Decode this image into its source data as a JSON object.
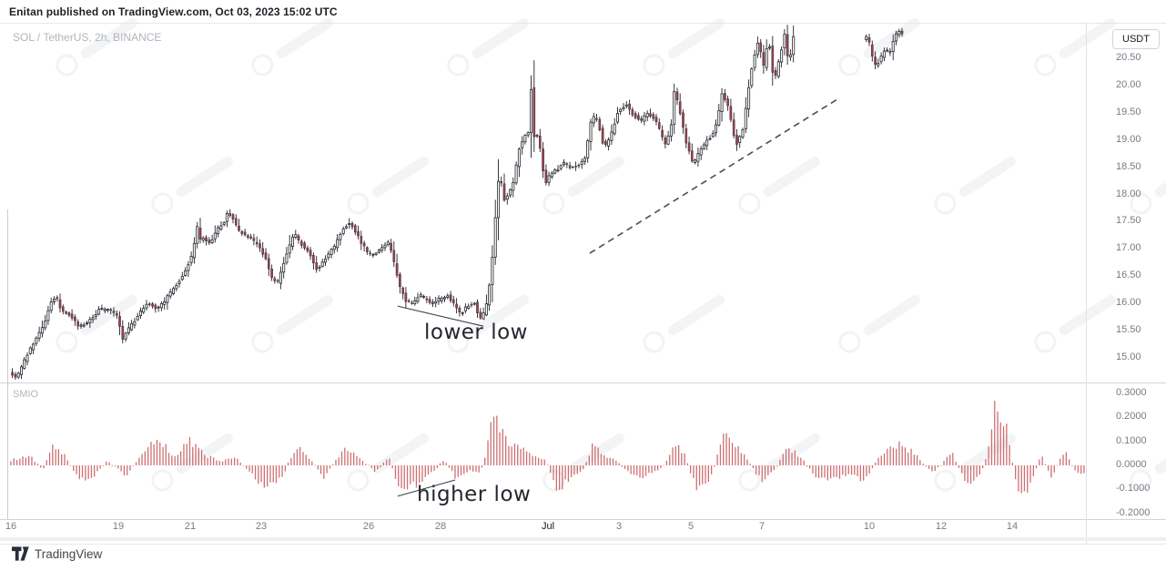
{
  "header": {
    "published_line": "Enitan published on TradingView.com, Oct 03, 2023 15:02 UTC",
    "symbol_line": "SOL / TetherUS, 2h, BINANCE",
    "currency_button": "USDT"
  },
  "footer": {
    "brand": "TradingView"
  },
  "annotations": {
    "lower_low": "lower low",
    "higher_low": "higher low"
  },
  "colors": {
    "candle_up_fill": "#ffffff",
    "candle_down_fill": "#9d4046",
    "candle_outline": "#23262f",
    "wick": "#1e222b",
    "smio_bar": "#c65b60",
    "trendline": "#4a4e57",
    "pointer_line": "#3a3e47",
    "axis_text": "#787b86",
    "divider": "#d1d4dc"
  },
  "chart_data": {
    "type": "candlestick",
    "title": "SOL / TetherUS, 2h, BINANCE",
    "encoding": "keyframes are [day_offset_from_Jun16, value]; candles are 2h (12 per day)",
    "time_axis": {
      "labels": [
        [
          "16",
          0
        ],
        [
          "19",
          3
        ],
        [
          "21",
          5
        ],
        [
          "23",
          7
        ],
        [
          "26",
          10
        ],
        [
          "28",
          12
        ],
        [
          "Jul",
          15
        ],
        [
          "3",
          17
        ],
        [
          "5",
          19
        ],
        [
          "7",
          21
        ],
        [
          "10",
          24
        ],
        [
          "12",
          26
        ],
        [
          "14",
          28
        ]
      ],
      "major_label": "Jul"
    },
    "price_pane": {
      "y_labels": [
        "20.50",
        "20.00",
        "19.50",
        "19.00",
        "18.50",
        "18.00",
        "17.50",
        "17.00",
        "16.50",
        "16.00",
        "15.50",
        "15.00"
      ],
      "visible_price_range": [
        14.57,
        21.15
      ],
      "candle_segments_days": [
        [
          0,
          21.92
        ],
        [
          23.87,
          24.94
        ]
      ],
      "price_keyframes": [
        [
          0,
          14.75
        ],
        [
          0.2,
          14.62
        ],
        [
          0.45,
          15.0
        ],
        [
          0.7,
          15.3
        ],
        [
          0.95,
          15.6
        ],
        [
          1.15,
          16.0
        ],
        [
          1.3,
          16.15
        ],
        [
          1.45,
          15.85
        ],
        [
          1.7,
          15.78
        ],
        [
          1.95,
          15.58
        ],
        [
          2.2,
          15.65
        ],
        [
          2.5,
          15.88
        ],
        [
          2.8,
          15.9
        ],
        [
          3.0,
          15.78
        ],
        [
          3.17,
          15.35
        ],
        [
          3.35,
          15.55
        ],
        [
          3.6,
          15.78
        ],
        [
          3.85,
          16.02
        ],
        [
          4.1,
          15.9
        ],
        [
          4.35,
          16.05
        ],
        [
          4.6,
          16.3
        ],
        [
          4.85,
          16.5
        ],
        [
          5.05,
          16.8
        ],
        [
          5.15,
          16.95
        ],
        [
          5.22,
          17.55
        ],
        [
          5.3,
          17.15
        ],
        [
          5.45,
          17.2
        ],
        [
          5.6,
          17.1
        ],
        [
          5.8,
          17.35
        ],
        [
          6.0,
          17.5
        ],
        [
          6.1,
          17.7
        ],
        [
          6.22,
          17.58
        ],
        [
          6.38,
          17.35
        ],
        [
          6.55,
          17.28
        ],
        [
          6.75,
          17.2
        ],
        [
          6.95,
          17.05
        ],
        [
          7.15,
          16.85
        ],
        [
          7.35,
          16.45
        ],
        [
          7.5,
          16.38
        ],
        [
          7.65,
          16.7
        ],
        [
          7.8,
          17.0
        ],
        [
          7.96,
          17.28
        ],
        [
          8.15,
          17.1
        ],
        [
          8.4,
          16.9
        ],
        [
          8.6,
          16.6
        ],
        [
          8.85,
          16.85
        ],
        [
          9.1,
          17.05
        ],
        [
          9.3,
          17.35
        ],
        [
          9.5,
          17.48
        ],
        [
          9.65,
          17.35
        ],
        [
          9.85,
          17.1
        ],
        [
          10.05,
          16.9
        ],
        [
          10.3,
          16.95
        ],
        [
          10.5,
          17.08
        ],
        [
          10.62,
          17.12
        ],
        [
          10.78,
          16.65
        ],
        [
          10.92,
          16.3
        ],
        [
          11.08,
          16.05
        ],
        [
          11.25,
          16.0
        ],
        [
          11.45,
          16.15
        ],
        [
          11.65,
          16.08
        ],
        [
          11.85,
          15.98
        ],
        [
          12.05,
          16.1
        ],
        [
          12.25,
          16.15
        ],
        [
          12.45,
          15.95
        ],
        [
          12.62,
          15.8
        ],
        [
          12.8,
          15.95
        ],
        [
          13.0,
          16.0
        ],
        [
          13.15,
          15.72
        ],
        [
          13.3,
          15.85
        ],
        [
          13.45,
          16.5
        ],
        [
          13.55,
          17.2
        ],
        [
          13.64,
          18.2
        ],
        [
          13.72,
          18.35
        ],
        [
          13.82,
          17.9
        ],
        [
          13.95,
          18.0
        ],
        [
          14.1,
          18.25
        ],
        [
          14.25,
          18.85
        ],
        [
          14.4,
          19.1
        ],
        [
          14.52,
          19.15
        ],
        [
          14.58,
          20.0
        ],
        [
          14.64,
          19.05
        ],
        [
          14.78,
          19.1
        ],
        [
          14.9,
          18.5
        ],
        [
          14.98,
          18.2
        ],
        [
          15.12,
          18.4
        ],
        [
          15.3,
          18.45
        ],
        [
          15.5,
          18.58
        ],
        [
          15.7,
          18.5
        ],
        [
          15.9,
          18.55
        ],
        [
          16.1,
          18.7
        ],
        [
          16.28,
          19.45
        ],
        [
          16.45,
          19.35
        ],
        [
          16.62,
          18.85
        ],
        [
          16.8,
          19.05
        ],
        [
          17.0,
          19.5
        ],
        [
          17.25,
          19.65
        ],
        [
          17.45,
          19.45
        ],
        [
          17.65,
          19.35
        ],
        [
          17.85,
          19.5
        ],
        [
          18.07,
          19.35
        ],
        [
          18.35,
          18.9
        ],
        [
          18.5,
          19.3
        ],
        [
          18.57,
          19.9
        ],
        [
          18.7,
          19.65
        ],
        [
          18.9,
          19.0
        ],
        [
          19.11,
          18.55
        ],
        [
          19.3,
          18.8
        ],
        [
          19.5,
          19.0
        ],
        [
          19.66,
          19.1
        ],
        [
          19.8,
          19.4
        ],
        [
          19.92,
          19.85
        ],
        [
          20.1,
          19.6
        ],
        [
          20.31,
          18.9
        ],
        [
          20.51,
          19.2
        ],
        [
          20.71,
          20.2
        ],
        [
          20.94,
          20.85
        ],
        [
          21.07,
          20.3
        ],
        [
          21.22,
          20.9
        ],
        [
          21.37,
          20.05
        ],
        [
          21.53,
          20.5
        ],
        [
          21.68,
          21.0
        ],
        [
          21.74,
          20.8
        ],
        [
          21.78,
          19.7
        ],
        [
          21.84,
          20.7
        ],
        [
          21.92,
          20.9
        ],
        [
          23.87,
          20.85
        ],
        [
          24.0,
          20.9
        ],
        [
          24.1,
          20.55
        ],
        [
          24.22,
          20.35
        ],
        [
          24.35,
          20.5
        ],
        [
          24.5,
          20.68
        ],
        [
          24.6,
          20.55
        ],
        [
          24.72,
          20.85
        ],
        [
          24.85,
          21.0
        ],
        [
          24.94,
          20.95
        ]
      ],
      "dashed_trendline": {
        "from": [
          16.18,
          16.92
        ],
        "to": [
          23.18,
          19.78
        ]
      },
      "lower_low_pointer": {
        "from": [
          10.81,
          15.95
        ],
        "to": [
          13.21,
          15.58
        ]
      }
    },
    "smio_pane": {
      "name": "SMIO",
      "y_labels": [
        "0.3000",
        "0.2000",
        "0.1000",
        "0.0000",
        "-0.1000",
        "-0.2000"
      ],
      "bars_range_days": [
        0,
        30.9
      ],
      "value_keyframes": [
        [
          0,
          0.02
        ],
        [
          0.5,
          0.045
        ],
        [
          0.9,
          -0.02
        ],
        [
          1.19,
          0.09
        ],
        [
          1.55,
          0.03
        ],
        [
          1.9,
          -0.06
        ],
        [
          2.3,
          -0.045
        ],
        [
          2.7,
          0.02
        ],
        [
          3.0,
          -0.015
        ],
        [
          3.2,
          -0.05
        ],
        [
          3.6,
          0.03
        ],
        [
          4.1,
          0.125
        ],
        [
          4.55,
          0.04
        ],
        [
          5.01,
          0.1
        ],
        [
          5.45,
          0.04
        ],
        [
          5.9,
          0.02
        ],
        [
          6.3,
          0.03
        ],
        [
          6.6,
          -0.02
        ],
        [
          6.95,
          -0.07
        ],
        [
          7.29,
          -0.085
        ],
        [
          7.65,
          -0.03
        ],
        [
          7.97,
          0.085
        ],
        [
          8.4,
          0.02
        ],
        [
          8.75,
          -0.05
        ],
        [
          9.05,
          0.02
        ],
        [
          9.39,
          0.07
        ],
        [
          9.8,
          0.025
        ],
        [
          10.2,
          -0.03
        ],
        [
          10.55,
          0.04
        ],
        [
          10.91,
          -0.115
        ],
        [
          11.4,
          -0.07
        ],
        [
          11.8,
          -0.03
        ],
        [
          12.1,
          0.02
        ],
        [
          12.46,
          -0.055
        ],
        [
          12.8,
          -0.02
        ],
        [
          13.1,
          -0.035
        ],
        [
          13.3,
          0.05
        ],
        [
          13.44,
          0.26
        ],
        [
          13.6,
          0.16
        ],
        [
          13.85,
          0.1
        ],
        [
          14.2,
          0.07
        ],
        [
          14.6,
          0.05
        ],
        [
          14.95,
          0.02
        ],
        [
          15.27,
          -0.1
        ],
        [
          15.7,
          -0.05
        ],
        [
          16.0,
          -0.02
        ],
        [
          16.25,
          0.085
        ],
        [
          16.6,
          0.04
        ],
        [
          16.95,
          0.02
        ],
        [
          17.2,
          -0.02
        ],
        [
          17.47,
          -0.055
        ],
        [
          17.8,
          -0.04
        ],
        [
          18.1,
          -0.02
        ],
        [
          18.35,
          0.02
        ],
        [
          18.56,
          0.105
        ],
        [
          18.85,
          0.04
        ],
        [
          19.19,
          -0.115
        ],
        [
          19.6,
          -0.04
        ],
        [
          19.95,
          0.145
        ],
        [
          20.2,
          0.1
        ],
        [
          20.55,
          0.03
        ],
        [
          21.0,
          -0.07
        ],
        [
          21.35,
          -0.02
        ],
        [
          21.7,
          0.08
        ],
        [
          22.1,
          0.03
        ],
        [
          22.5,
          -0.05
        ],
        [
          23.0,
          -0.055
        ],
        [
          23.5,
          -0.04
        ],
        [
          23.85,
          -0.07
        ],
        [
          24.2,
          0.02
        ],
        [
          24.6,
          0.07
        ],
        [
          24.9,
          0.09
        ],
        [
          25.3,
          0.04
        ],
        [
          25.77,
          -0.03
        ],
        [
          26.1,
          0.02
        ],
        [
          26.3,
          0.06
        ],
        [
          26.55,
          -0.03
        ],
        [
          26.8,
          -0.08
        ],
        [
          27.1,
          -0.04
        ],
        [
          27.35,
          0.08
        ],
        [
          27.54,
          0.3
        ],
        [
          27.7,
          0.2
        ],
        [
          27.9,
          0.12
        ],
        [
          28.05,
          -0.04
        ],
        [
          28.2,
          -0.13
        ],
        [
          28.5,
          -0.08
        ],
        [
          28.8,
          0.04
        ],
        [
          29.1,
          -0.05
        ],
        [
          29.3,
          0.02
        ],
        [
          29.5,
          0.05
        ],
        [
          29.75,
          -0.02
        ],
        [
          29.95,
          -0.05
        ],
        [
          30.2,
          0.02
        ],
        [
          30.5,
          0.04
        ],
        [
          30.7,
          0.02
        ],
        [
          30.9,
          -0.05
        ]
      ],
      "higher_low_pointer": {
        "from": [
          10.81,
          -0.129
        ],
        "to": [
          12.42,
          -0.061
        ]
      }
    }
  }
}
